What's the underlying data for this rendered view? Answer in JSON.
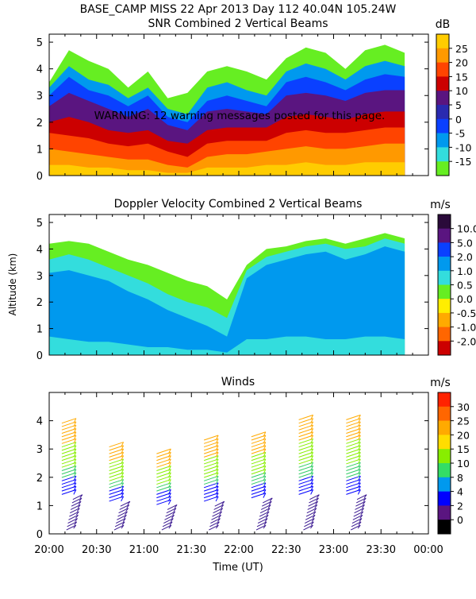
{
  "page": {
    "header": "BASE_CAMP MISS  22 Apr 2013 Day 112 40.04N 105.24W",
    "warning": "WARNING: 12 warning messages posted for this page.",
    "y_axis_label": "Altitude (km)",
    "x_axis_label": "Time (UT)"
  },
  "chart_data": [
    {
      "type": "heatmap",
      "title": "SNR Combined 2 Vertical Beams",
      "ylim": [
        0,
        5.3
      ],
      "yticks": [
        "0",
        "1",
        "2",
        "3",
        "4",
        "5"
      ],
      "xticks": [
        "20:00",
        "20:30",
        "21:00",
        "21:30",
        "22:00",
        "22:30",
        "23:00",
        "23:30",
        "00:00"
      ],
      "colorbar": {
        "unit": "dB",
        "labels": [
          "25",
          "20",
          "15",
          "10",
          "5",
          "0",
          "-5",
          "-10",
          "-15"
        ],
        "colors": [
          "#ffcc00",
          "#ff9900",
          "#ff4400",
          "#cc0000",
          "#5a1580",
          "#2a2ab0",
          "#0a40ff",
          "#0099ee",
          "#33dddd",
          "#66ee22"
        ]
      },
      "layers": [
        {
          "color": "#66ee22",
          "tops": [
            3.5,
            4.7,
            4.3,
            4.0,
            3.3,
            3.9,
            2.9,
            3.1,
            3.9,
            4.1,
            3.9,
            3.6,
            4.4,
            4.8,
            4.6,
            4.0,
            4.7,
            4.9,
            4.6
          ]
        },
        {
          "color": "#0099ee",
          "tops": [
            3.3,
            4.1,
            3.6,
            3.4,
            2.9,
            3.3,
            2.5,
            2.3,
            3.3,
            3.5,
            3.2,
            3.0,
            3.9,
            4.2,
            4.0,
            3.6,
            4.1,
            4.3,
            4.1
          ]
        },
        {
          "color": "#0a40ff",
          "tops": [
            3.0,
            3.7,
            3.2,
            3.0,
            2.6,
            3.0,
            2.2,
            2.0,
            2.8,
            3.0,
            2.8,
            2.6,
            3.5,
            3.7,
            3.5,
            3.2,
            3.6,
            3.8,
            3.7
          ]
        },
        {
          "color": "#5a1580",
          "tops": [
            2.6,
            3.1,
            2.8,
            2.5,
            2.2,
            2.5,
            1.9,
            1.7,
            2.4,
            2.5,
            2.4,
            2.3,
            3.0,
            3.1,
            3.0,
            2.8,
            3.1,
            3.2,
            3.2
          ]
        },
        {
          "color": "#cc0000",
          "tops": [
            2.0,
            2.2,
            2.0,
            1.7,
            1.6,
            1.7,
            1.3,
            1.2,
            1.7,
            1.8,
            1.8,
            1.8,
            2.2,
            2.3,
            2.2,
            2.1,
            2.3,
            2.4,
            2.4
          ]
        },
        {
          "color": "#ff4400",
          "tops": [
            1.6,
            1.5,
            1.4,
            1.2,
            1.1,
            1.2,
            0.9,
            0.7,
            1.2,
            1.3,
            1.3,
            1.3,
            1.6,
            1.7,
            1.6,
            1.6,
            1.7,
            1.8,
            1.8
          ]
        },
        {
          "color": "#ff9900",
          "tops": [
            1.0,
            0.9,
            0.8,
            0.7,
            0.6,
            0.6,
            0.4,
            0.3,
            0.7,
            0.8,
            0.8,
            0.9,
            1.0,
            1.1,
            1.0,
            1.0,
            1.1,
            1.2,
            1.2
          ]
        },
        {
          "color": "#ffcc00",
          "tops": [
            0.4,
            0.4,
            0.3,
            0.3,
            0.2,
            0.2,
            0.1,
            0.1,
            0.3,
            0.3,
            0.3,
            0.4,
            0.4,
            0.5,
            0.4,
            0.4,
            0.5,
            0.5,
            0.5
          ]
        }
      ]
    },
    {
      "type": "heatmap",
      "title": "Doppler Velocity Combined 2 Vertical Beams",
      "ylim": [
        0,
        5.3
      ],
      "yticks": [
        "0",
        "1",
        "2",
        "3",
        "4",
        "5"
      ],
      "xticks": [
        "20:00",
        "20:30",
        "21:00",
        "21:30",
        "22:00",
        "22:30",
        "23:00",
        "23:30",
        "00:00"
      ],
      "colorbar": {
        "unit": "m/s",
        "labels": [
          "10.0",
          "5.0",
          "2.0",
          "1.0",
          "0.5",
          "0.0",
          "-0.5",
          "-1.0",
          "-2.0"
        ],
        "colors": [
          "#2a0a3a",
          "#5a1580",
          "#0a40ff",
          "#0099ee",
          "#33dddd",
          "#66ee22",
          "#ffee00",
          "#ffaa00",
          "#ff6600",
          "#cc0000"
        ]
      },
      "layers": [
        {
          "color": "#66ee22",
          "tops": [
            4.2,
            4.3,
            4.2,
            3.9,
            3.6,
            3.4,
            3.1,
            2.8,
            2.6,
            2.1,
            3.4,
            4.0,
            4.1,
            4.3,
            4.4,
            4.2,
            4.4,
            4.6,
            4.4
          ]
        },
        {
          "color": "#33dddd",
          "tops": [
            3.6,
            3.8,
            3.6,
            3.3,
            3.0,
            2.7,
            2.3,
            2.0,
            1.8,
            1.4,
            3.2,
            3.7,
            3.9,
            4.1,
            4.2,
            4.0,
            4.1,
            4.4,
            4.2
          ]
        },
        {
          "color": "#0099ee",
          "tops": [
            3.1,
            3.2,
            3.0,
            2.8,
            2.4,
            2.1,
            1.7,
            1.4,
            1.1,
            0.7,
            2.9,
            3.4,
            3.6,
            3.8,
            3.9,
            3.6,
            3.8,
            4.1,
            3.9
          ]
        },
        {
          "color": "#33dddd",
          "tops": [
            0.7,
            0.6,
            0.5,
            0.5,
            0.4,
            0.3,
            0.3,
            0.2,
            0.2,
            0.1,
            0.6,
            0.6,
            0.7,
            0.7,
            0.6,
            0.6,
            0.7,
            0.7,
            0.6
          ]
        }
      ]
    },
    {
      "type": "scatter",
      "title": "Winds",
      "ylim": [
        0,
        5
      ],
      "yticks": [
        "0",
        "1",
        "2",
        "3",
        "4"
      ],
      "xticks": [
        "20:00",
        "20:30",
        "21:00",
        "21:30",
        "22:00",
        "22:30",
        "23:00",
        "23:30",
        "00:00"
      ],
      "colorbar": {
        "unit": "m/s",
        "labels": [
          "30",
          "25",
          "20",
          "15",
          "10",
          "8",
          "4",
          "2",
          "0"
        ],
        "colors": [
          "#ff2200",
          "#ff6600",
          "#ffaa00",
          "#ffdd00",
          "#88ee00",
          "#33dd66",
          "#0099ee",
          "#0000ff",
          "#5a1580",
          "#000000"
        ]
      },
      "profiles": [
        {
          "time_min": 15,
          "top_km": 4.0
        },
        {
          "time_min": 45,
          "top_km": 3.2
        },
        {
          "time_min": 75,
          "top_km": 3.0
        },
        {
          "time_min": 105,
          "top_km": 3.4
        },
        {
          "time_min": 135,
          "top_km": 3.5
        },
        {
          "time_min": 165,
          "top_km": 4.1
        },
        {
          "time_min": 195,
          "top_km": 4.1
        }
      ]
    }
  ]
}
